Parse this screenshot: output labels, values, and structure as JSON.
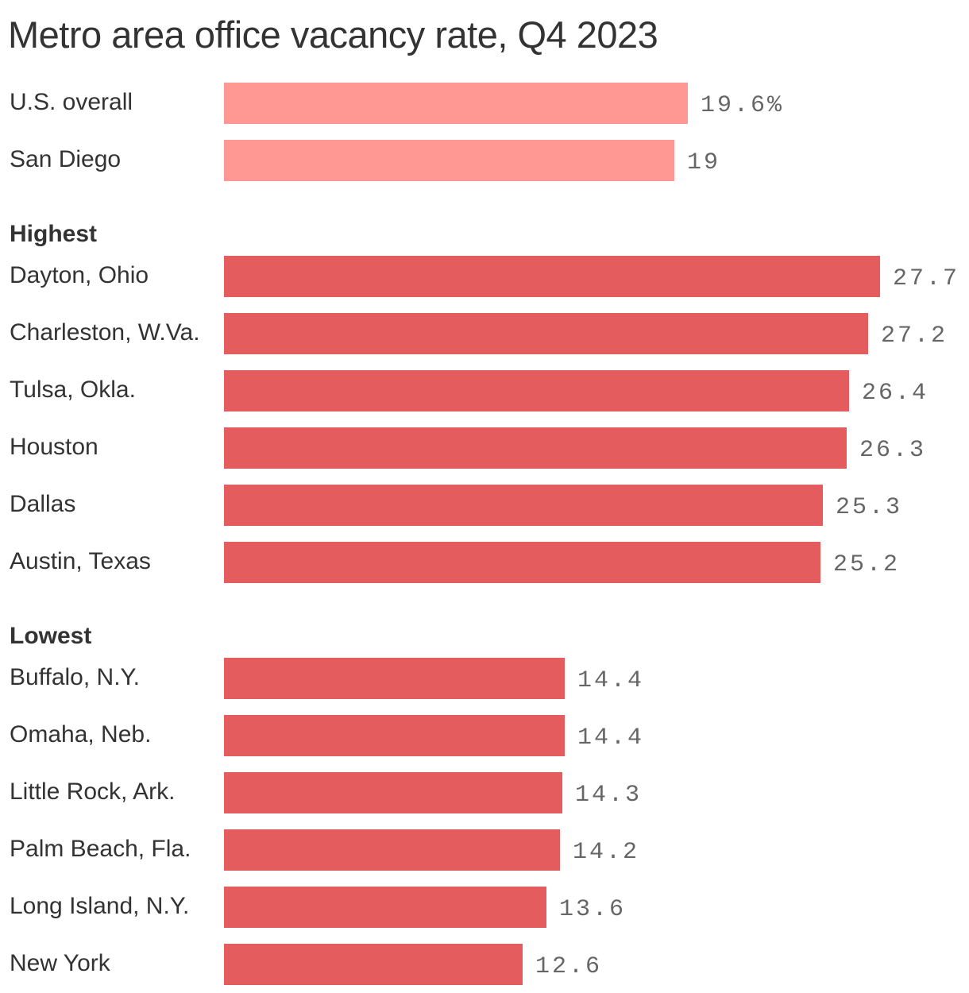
{
  "chart_data": {
    "type": "bar",
    "orientation": "horizontal",
    "title": "Metro area office vacancy rate, Q4 2023",
    "xlabel": "",
    "ylabel": "",
    "xlim": [
      0,
      27.7
    ],
    "grid": false,
    "unit_suffix_first": "%",
    "groups": [
      {
        "label": "",
        "color": "#ff9893",
        "categories": [
          "U.S. overall",
          "San Diego"
        ],
        "values": [
          19.6,
          19
        ],
        "value_labels": [
          "19.6%",
          "19"
        ]
      },
      {
        "label": "Highest",
        "color": "#e45c5e",
        "categories": [
          "Dayton, Ohio",
          "Charleston, W.Va.",
          "Tulsa, Okla.",
          "Houston",
          "Dallas",
          "Austin, Texas"
        ],
        "values": [
          27.7,
          27.2,
          26.4,
          26.3,
          25.3,
          25.2
        ],
        "value_labels": [
          "27.7",
          "27.2",
          "26.4",
          "26.3",
          "25.3",
          "25.2"
        ]
      },
      {
        "label": "Lowest",
        "color": "#e45c5e",
        "categories": [
          "Buffalo, N.Y.",
          "Omaha, Neb.",
          "Little Rock, Ark.",
          "Palm Beach, Fla.",
          "Long Island, N.Y.",
          "New York"
        ],
        "values": [
          14.4,
          14.4,
          14.3,
          14.2,
          13.6,
          12.6
        ],
        "value_labels": [
          "14.4",
          "14.4",
          "14.3",
          "14.2",
          "13.6",
          "12.6"
        ]
      }
    ]
  }
}
